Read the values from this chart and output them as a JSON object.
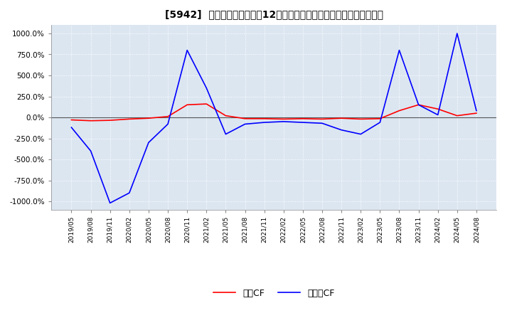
{
  "title": "[5942]  キャッシュフローの12か月移動合計の対前年同期増減率の推移",
  "ylim": [
    -1100,
    1100
  ],
  "yticks": [
    -1000,
    -750,
    -500,
    -250,
    0,
    250,
    500,
    750,
    1000
  ],
  "ytick_labels": [
    "-1000.0%",
    "-750.0%",
    "-500.0%",
    "-250.0%",
    "0.0%",
    "250.0%",
    "500.0%",
    "750.0%",
    "1000.0%"
  ],
  "legend_labels": [
    "営業CF",
    "フリーCF"
  ],
  "line_colors": [
    "#ff0000",
    "#0000ff"
  ],
  "background_color": "#dce6f1",
  "grid_color": "#ffffff",
  "grid_style": "dotted",
  "x_dates": [
    "2019/05",
    "2019/08",
    "2019/11",
    "2020/02",
    "2020/05",
    "2020/08",
    "2020/11",
    "2021/02",
    "2021/05",
    "2021/08",
    "2021/11",
    "2022/02",
    "2022/05",
    "2022/08",
    "2022/11",
    "2023/02",
    "2023/05",
    "2023/08",
    "2023/11",
    "2024/02",
    "2024/05",
    "2024/08"
  ],
  "operating_cf": [
    -30,
    -40,
    -35,
    -20,
    -10,
    10,
    150,
    160,
    20,
    -15,
    -15,
    -20,
    -15,
    -20,
    -10,
    -20,
    -15,
    80,
    150,
    100,
    20,
    50
  ],
  "free_cf": [
    -120,
    -400,
    -1020,
    -900,
    -300,
    -80,
    800,
    350,
    -200,
    -80,
    -60,
    -50,
    -60,
    -70,
    -150,
    -200,
    -60,
    800,
    150,
    30,
    1000,
    80
  ]
}
